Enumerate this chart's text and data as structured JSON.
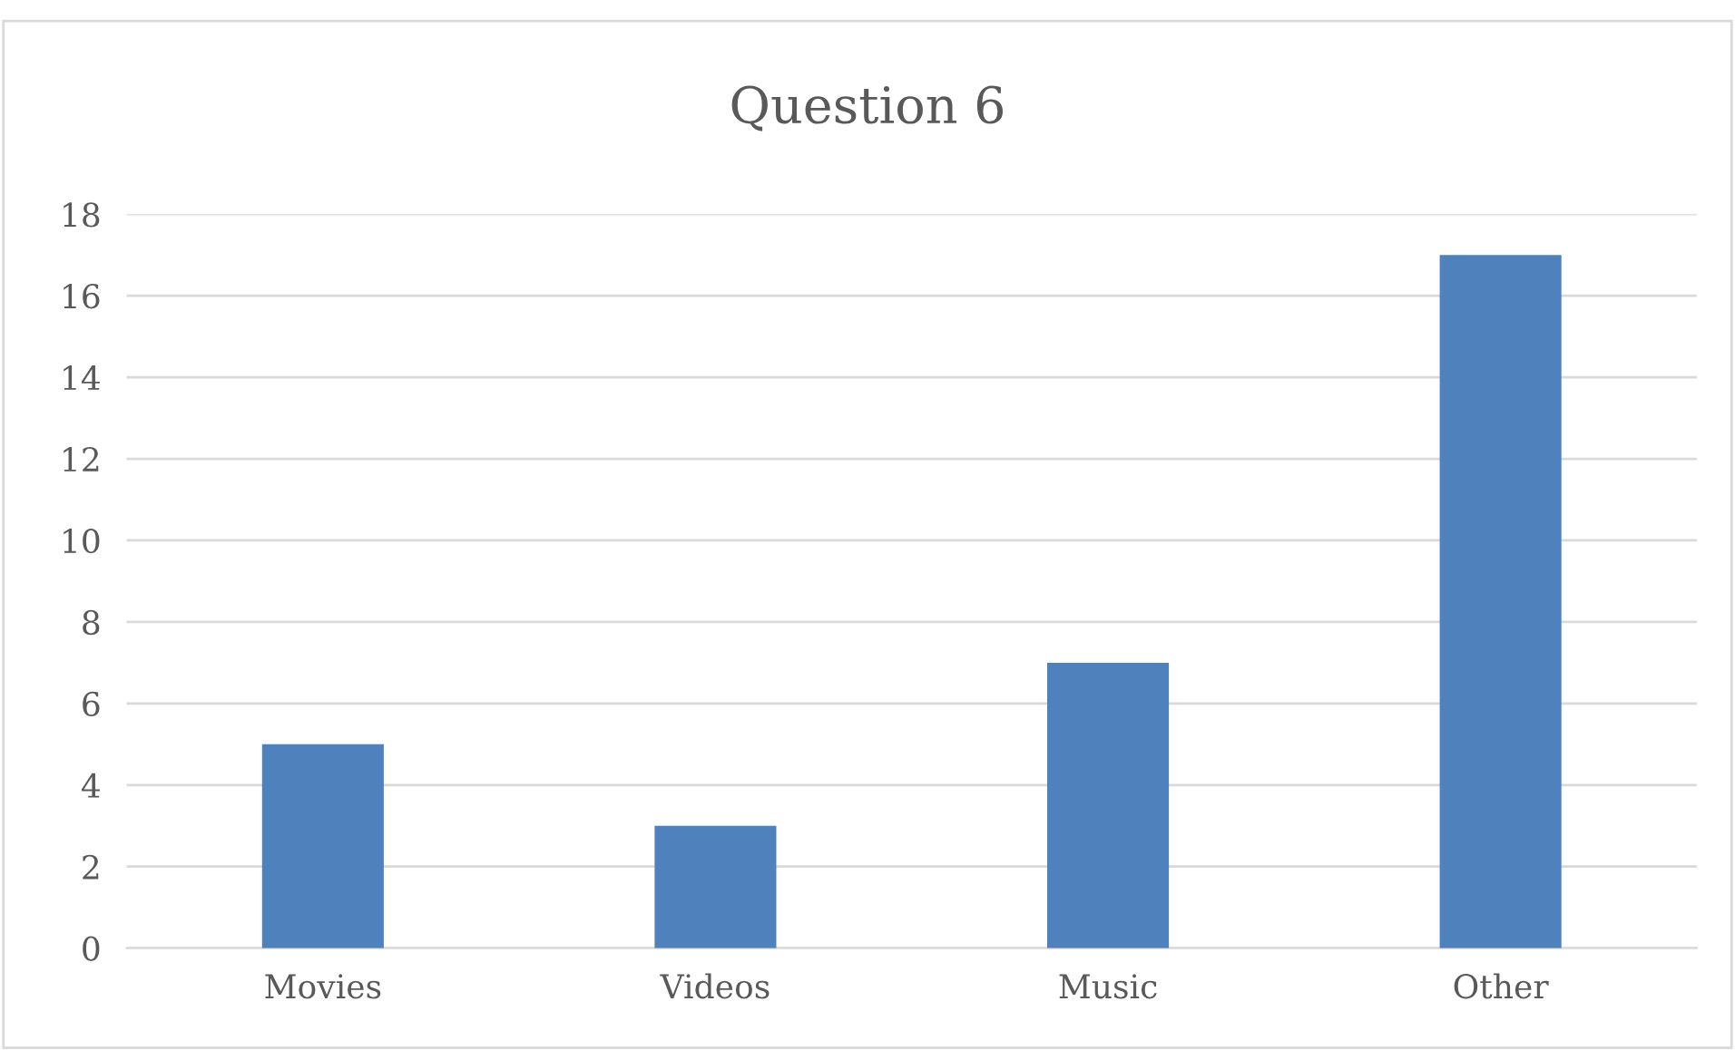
{
  "chart_data": {
    "type": "bar",
    "title": "Question 6",
    "categories": [
      "Movies",
      "Videos",
      "Music",
      "Other"
    ],
    "values": [
      5,
      3,
      7,
      17
    ],
    "color": "#4f81bd",
    "ylim": [
      0,
      18
    ],
    "yticks": [
      0,
      2,
      4,
      6,
      8,
      10,
      12,
      14,
      16,
      18
    ],
    "grid": "y",
    "legend": false
  }
}
